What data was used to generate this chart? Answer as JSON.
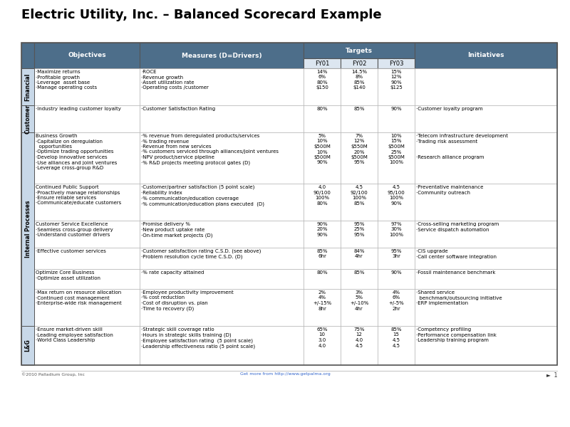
{
  "title": "Electric Utility, Inc. – Balanced Scorecard Example",
  "header_bg": "#4d6e8a",
  "header_text": "#ffffff",
  "fy_bg": "#dce6f0",
  "fy_text": "#000000",
  "persp_bg": "#c8d8e8",
  "row_bg": "#ffffff",
  "border_color": "#888888",
  "rows": [
    {
      "perspective": "Financial",
      "objectives": "·Maximize returns\n·Profitable growth\n·Leverage  asset base\n·Manage operating costs",
      "measures": "·ROCE\n·Revenue growth\n·Asset utilization rate\n·Operating costs /customer",
      "fy01": "14%\n6%\n80%\n$150",
      "fy02": "14.5%\n8%\n85%\n$140",
      "fy03": "15%\n12%\n90%\n$125",
      "initiatives": ""
    },
    {
      "perspective": "Customer",
      "objectives": "·Industry leading customer loyalty",
      "measures": "·Customer Satisfaction Rating",
      "fy01": "80%",
      "fy02": "85%",
      "fy03": "90%",
      "initiatives": "·Customer loyalty program"
    },
    {
      "perspective": "Internal Processes",
      "objectives": "Business Growth\n·Capitalize on deregulation\n  opportunities\n·Optimize trading opportunities\n·Develop innovative services\n·Use alliances and joint ventures\n·Leverage cross-group R&D",
      "measures": "·% revenue from deregulated products/services\n·% trading revenue\n·Revenue from new services\n·% customers serviced through alliances/joint ventures\n·NPV product/service pipeline\n·% R&D projects meeting protocol gates (D)",
      "fy01": "5%\n10%\n$500M\n10%\n$500M\n90%",
      "fy02": "7%\n12%\n$550M\n20%\n$500M\n95%",
      "fy03": "10%\n15%\n$500M\n25%\n$500M\n100%",
      "initiatives": "·Telecom infrastructure development\n·Trading risk assessment\n\n\n·Research alliance program"
    },
    {
      "perspective": "Internal Processes",
      "objectives": "Continued Public Support\n·Proactively manage relationships\n·Ensure reliable services\n·Communicate/educate customers",
      "measures": "·Customer/partner satisfaction (5 point scale)\n·Reliability index\n·% communication/education coverage\n·% communication/education plans executed  (D)",
      "fy01": "4.0\n90/100\n100%\n80%",
      "fy02": "4.5\n92/100\n100%\n85%",
      "fy03": "4.5\n95/100\n100%\n90%",
      "initiatives": "·Preventative maintenance\n·Community outreach"
    },
    {
      "perspective": "Internal Processes",
      "objectives": "Customer Service Excellence\n·Seamless cross-group delivery\n·Understand customer drivers",
      "measures": "·Promise delivery %\n·New product uptake rate\n·On-time market projects (D)",
      "fy01": "90%\n20%\n90%",
      "fy02": "95%\n25%\n95%",
      "fy03": "97%\n30%\n100%",
      "initiatives": "·Cross-selling marketing program\n·Service dispatch automation"
    },
    {
      "perspective": "Internal Processes",
      "objectives": "·Effective customer services",
      "measures": "·Customer satisfaction rating C.S.D. (see above)\n·Problem resolution cycle time C.S.D. (D)",
      "fy01": "85%\n6hr",
      "fy02": "84%\n4hr",
      "fy03": "95%\n3hr",
      "initiatives": "·CIS upgrade\n·Call center software integration"
    },
    {
      "perspective": "Internal Processes",
      "objectives": "Optimize Core Business\n·Optimize asset utilization",
      "measures": "·% rate capacity attained",
      "fy01": "80%",
      "fy02": "85%",
      "fy03": "90%",
      "initiatives": "·Fossil maintenance benchmark"
    },
    {
      "perspective": "Internal Processes",
      "objectives": "·Max return on resource allocation\n·Continued cost management\n·Enterprise-wide risk management",
      "measures": "·Employee productivity improvement\n·% cost reduction\n·Cost of disruption vs. plan\n·Time to recovery (D)",
      "fy01": "2%\n4%\n+/-15%\n8hr",
      "fy02": "3%\n5%\n+/-10%\n4hr",
      "fy03": "4%\n6%\n+/-5%\n2hr",
      "initiatives": "·Shared service\n  benchmark/outsourcing initiative\n·ERP implementation"
    },
    {
      "perspective": "L&G",
      "objectives": "·Ensure market-driven skill\n·Leading employee satisfaction\n·World Class Leadership",
      "measures": "·Strategic skill coverage ratio\n·Hours in strategic skills training (D)\n·Employee satisfaction rating  (5 point scale)\n·Leadership effectiveness ratio (5 point scale)",
      "fy01": "65%\n10\n3.0\n4.0",
      "fy02": "75%\n12\n4.0\n4.5",
      "fy03": "85%\n15\n4.5\n4.5",
      "initiatives": "·Competency profiling\n·Performance compensation link\n·Leadership training program"
    }
  ],
  "perspective_groups": [
    {
      "label": "Financial",
      "rows": [
        0,
        1
      ]
    },
    {
      "label": "Customer",
      "rows": [
        1,
        2
      ]
    },
    {
      "label": "Internal Processes",
      "rows": [
        2,
        8
      ]
    },
    {
      "label": "L&G",
      "rows": [
        8,
        9
      ]
    }
  ]
}
